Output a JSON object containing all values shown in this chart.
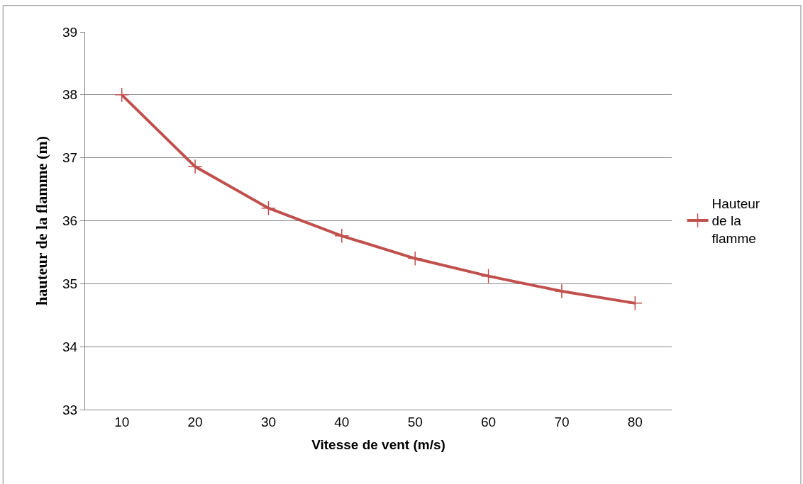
{
  "chart_data": {
    "type": "line",
    "xlabel": "Vitesse de vent (m/s)",
    "ylabel": "hauteur de la flamme (m)",
    "categories": [
      "10",
      "20",
      "30",
      "40",
      "50",
      "60",
      "70",
      "80"
    ],
    "series": [
      {
        "name": "Hauteur de la flamme",
        "color": "#c0504d",
        "values": [
          38.0,
          36.86,
          36.2,
          35.76,
          35.4,
          35.12,
          34.88,
          34.69
        ]
      }
    ],
    "ylim": [
      33,
      39
    ],
    "yticks": [
      33,
      34,
      35,
      36,
      37,
      38,
      39
    ],
    "grid": "y",
    "legend": "right",
    "marker": "cross",
    "line_style": "solid"
  }
}
